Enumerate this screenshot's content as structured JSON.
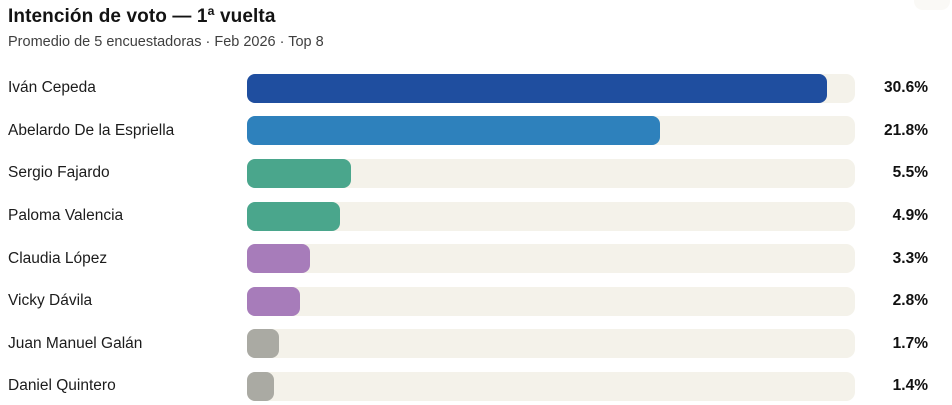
{
  "header": {
    "title": "Intención de voto — 1ª vuelta",
    "subtitle": "Promedio de 5 encuestadoras · Feb 2026 · Top 8"
  },
  "chart_data": {
    "type": "bar",
    "orientation": "horizontal",
    "title": "Intención de voto — 1ª vuelta",
    "subtitle": "Promedio de 5 encuestadoras · Feb 2026 · Top 8",
    "categories": [
      "Iván Cepeda",
      "Abelardo De la Espriella",
      "Sergio Fajardo",
      "Paloma Valencia",
      "Claudia López",
      "Vicky Dávila",
      "Juan Manuel Galán",
      "Daniel Quintero"
    ],
    "values": [
      30.6,
      21.8,
      5.5,
      4.9,
      3.3,
      2.8,
      1.7,
      1.4
    ],
    "value_labels": [
      "30.6%",
      "21.8%",
      "5.5%",
      "4.9%",
      "3.3%",
      "2.8%",
      "1.7%",
      "1.4%"
    ],
    "bar_colors": [
      "#1f4e9f",
      "#2e81bc",
      "#4aa68c",
      "#4aa68c",
      "#a77cba",
      "#a77cba",
      "#aaaaa3",
      "#aaaaa3"
    ],
    "track_color": "#f4f2ea",
    "xlim": [
      0,
      32.1
    ],
    "grid": false,
    "legend": false
  }
}
